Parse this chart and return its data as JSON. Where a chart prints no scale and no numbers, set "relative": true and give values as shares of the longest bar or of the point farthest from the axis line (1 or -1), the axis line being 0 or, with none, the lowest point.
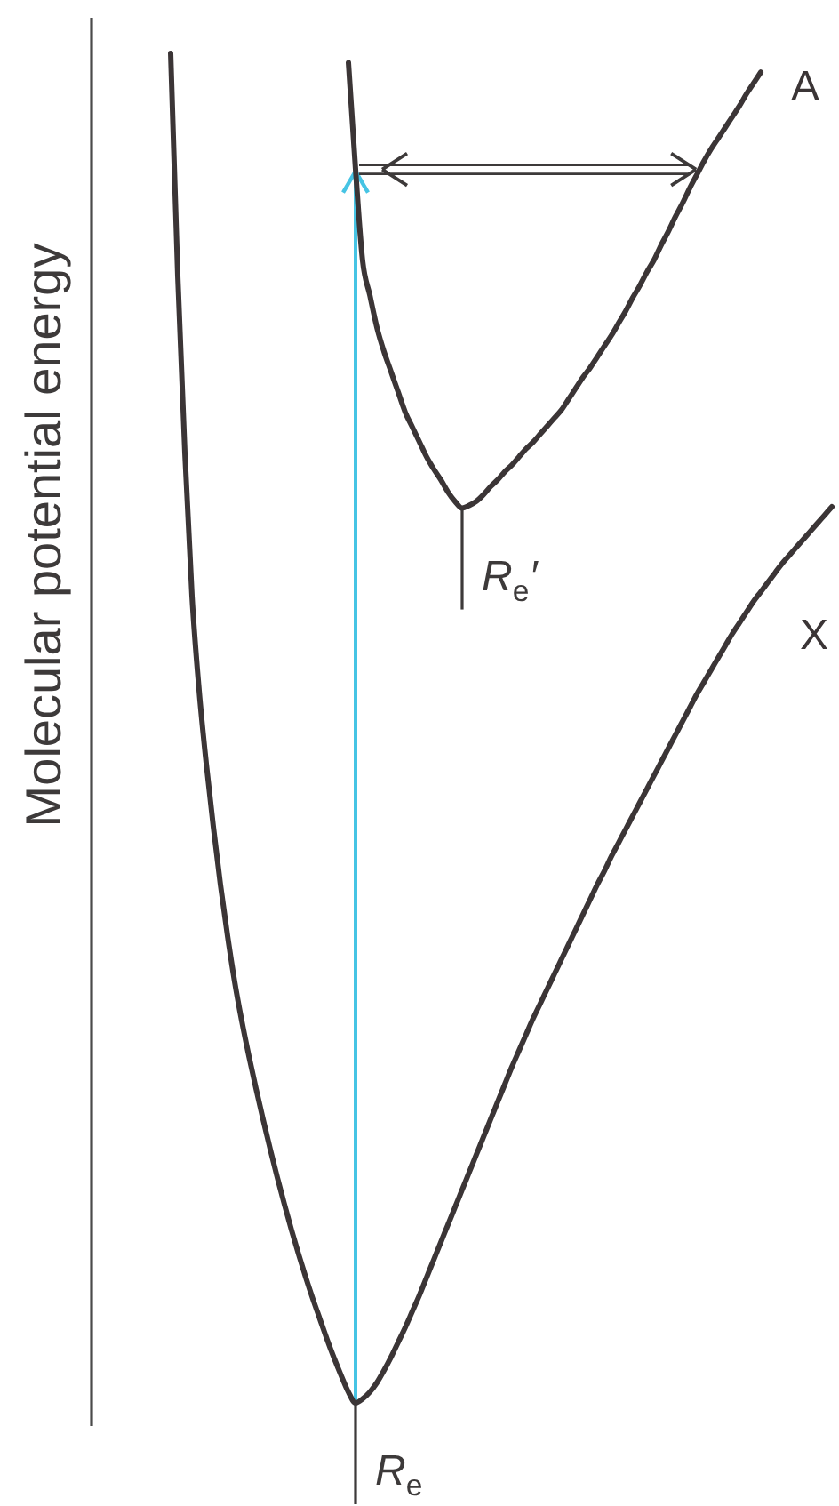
{
  "chart_data": {
    "type": "line",
    "ylabel": "Molecular potential energy",
    "relative": true,
    "categories": [
      null,
      null,
      null,
      null,
      null,
      null,
      null,
      null,
      null,
      null,
      null,
      null,
      null,
      null,
      null,
      null,
      null,
      null,
      null,
      null,
      null,
      null,
      null,
      null,
      null,
      null,
      null,
      null,
      null,
      null,
      null,
      null,
      null,
      null,
      null,
      null,
      null,
      null,
      null,
      null,
      null,
      null,
      null,
      null,
      null,
      null,
      null,
      null,
      null,
      null,
      null,
      null,
      null,
      null,
      null,
      null,
      null,
      null,
      null,
      null,
      null,
      null,
      null,
      null,
      null,
      null,
      null,
      null,
      null,
      null,
      null,
      null,
      null,
      null,
      null,
      null,
      null,
      null,
      null,
      null,
      null,
      null,
      null,
      null,
      null,
      null,
      null,
      null,
      null,
      null,
      null,
      null,
      null,
      null
    ],
    "series": [
      {
        "name": "X",
        "color": "#3b3536",
        "values": [
          1.0,
          0.835,
          0.704,
          0.598,
          0.528,
          0.474,
          0.427,
          0.384,
          0.346,
          0.312,
          0.283,
          0.257,
          0.233,
          0.21,
          0.188,
          0.167,
          0.147,
          0.128,
          0.11,
          0.093,
          0.077,
          0.062,
          0.047,
          0.033,
          0.02,
          0.008,
          0,
          0.003,
          0.008,
          0.015,
          0.024,
          0.034,
          0.045,
          0.056,
          0.068,
          0.08,
          0.093,
          0.106,
          0.119,
          0.132,
          0.145,
          0.158,
          0.171,
          0.184,
          0.197,
          0.21,
          0.223,
          0.236,
          0.249,
          0.261,
          0.273,
          0.285,
          0.296,
          0.307,
          0.318,
          0.329,
          0.34,
          0.351,
          0.362,
          0.373,
          0.384,
          0.394,
          0.405,
          0.415,
          0.425,
          0.435,
          0.445,
          0.455,
          0.465,
          0.475,
          0.485,
          0.495,
          0.505,
          0.515,
          0.525,
          0.534,
          0.543,
          0.552,
          0.561,
          0.57,
          0.578,
          0.586,
          0.594,
          0.601,
          0.608,
          0.615,
          0.622,
          0.628,
          0.634,
          0.64,
          0.646,
          0.652,
          0.658,
          0.664
        ]
      },
      {
        "name": "A",
        "color": "#3b3536",
        "values": [
          null,
          null,
          null,
          null,
          null,
          null,
          null,
          null,
          null,
          null,
          null,
          null,
          null,
          null,
          null,
          null,
          null,
          null,
          null,
          null,
          null,
          null,
          null,
          null,
          null,
          0.993,
          0.914,
          0.846,
          0.821,
          0.797,
          0.779,
          0.764,
          0.749,
          0.734,
          0.723,
          0.712,
          0.701,
          0.692,
          0.684,
          0.675,
          0.668,
          0.663,
          0.665,
          0.668,
          0.673,
          0.679,
          0.684,
          0.69,
          0.695,
          0.701,
          0.707,
          0.712,
          0.718,
          0.724,
          0.73,
          0.736,
          0.744,
          0.752,
          0.76,
          0.767,
          0.775,
          0.783,
          0.791,
          0.8,
          0.809,
          0.819,
          0.828,
          0.838,
          0.847,
          0.858,
          0.868,
          0.879,
          0.889,
          0.9,
          0.91,
          0.92,
          0.929,
          0.937,
          0.945,
          0.953,
          0.961,
          0.97,
          0.978,
          0.986,
          null,
          null,
          null,
          null,
          null,
          null,
          null,
          null,
          null,
          null
        ]
      }
    ],
    "annotations": [
      "R$_{e}$",
      "R$_{e}$′"
    ]
  }
}
